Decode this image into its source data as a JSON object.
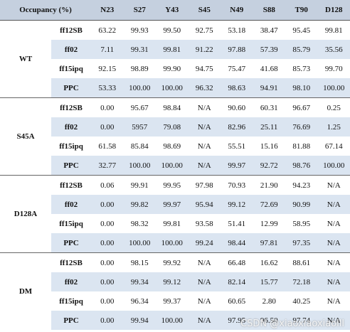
{
  "table": {
    "header": [
      "Occupancy (%)",
      "N23",
      "S27",
      "Y43",
      "S45",
      "N49",
      "S88",
      "T90",
      "D128"
    ],
    "groups": [
      {
        "name": "WT",
        "rows": [
          {
            "method": "ff12SB",
            "values": [
              "63.22",
              "99.93",
              "99.50",
              "92.75",
              "53.18",
              "38.47",
              "95.45",
              "99.81"
            ]
          },
          {
            "method": "ff02",
            "values": [
              "7.11",
              "99.31",
              "99.81",
              "91.22",
              "97.88",
              "57.39",
              "85.79",
              "35.56"
            ]
          },
          {
            "method": "ff15ipq",
            "values": [
              "92.15",
              "98.89",
              "99.90",
              "94.75",
              "75.47",
              "41.68",
              "85.73",
              "99.70"
            ]
          },
          {
            "method": "PPC",
            "values": [
              "53.33",
              "100.00",
              "100.00",
              "96.32",
              "98.63",
              "94.91",
              "98.10",
              "100.00"
            ]
          }
        ]
      },
      {
        "name": "S45A",
        "rows": [
          {
            "method": "ff12SB",
            "values": [
              "0.00",
              "95.67",
              "98.84",
              "N/A",
              "90.60",
              "60.31",
              "96.67",
              "0.25"
            ]
          },
          {
            "method": "ff02",
            "values": [
              "0.00",
              "5957",
              "79.08",
              "N/A",
              "82.96",
              "25.11",
              "76.69",
              "1.25"
            ]
          },
          {
            "method": "ff15ipq",
            "values": [
              "61.58",
              "85.84",
              "98.69",
              "N/A",
              "55.51",
              "15.16",
              "81.88",
              "67.14"
            ]
          },
          {
            "method": "PPC",
            "values": [
              "32.77",
              "100.00",
              "100.00",
              "N/A",
              "99.97",
              "92.72",
              "98.76",
              "100.00"
            ]
          }
        ]
      },
      {
        "name": "D128A",
        "rows": [
          {
            "method": "ff12SB",
            "values": [
              "0.06",
              "99.91",
              "99.95",
              "97.98",
              "70.93",
              "21.90",
              "94.23",
              "N/A"
            ]
          },
          {
            "method": "ff02",
            "values": [
              "0.00",
              "99.82",
              "99.97",
              "95.94",
              "99.12",
              "72.69",
              "90.99",
              "N/A"
            ]
          },
          {
            "method": "ff15ipq",
            "values": [
              "0.00",
              "98.32",
              "99.81",
              "93.58",
              "51.41",
              "12.99",
              "58.95",
              "N/A"
            ]
          },
          {
            "method": "PPC",
            "values": [
              "0.00",
              "100.00",
              "100.00",
              "99.24",
              "98.44",
              "97.81",
              "97.35",
              "N/A"
            ]
          }
        ]
      },
      {
        "name": "DM",
        "rows": [
          {
            "method": "ff12SB",
            "values": [
              "0.00",
              "98.15",
              "99.92",
              "N/A",
              "66.48",
              "16.62",
              "88.61",
              "N/A"
            ]
          },
          {
            "method": "ff02",
            "values": [
              "0.00",
              "99.34",
              "99.12",
              "N/A",
              "82.14",
              "15.77",
              "72.18",
              "N/A"
            ]
          },
          {
            "method": "ff15ipq",
            "values": [
              "0.00",
              "96.34",
              "99.37",
              "N/A",
              "60.65",
              "2.80",
              "40.25",
              "N/A"
            ]
          },
          {
            "method": "PPC",
            "values": [
              "0.00",
              "99.94",
              "100.00",
              "N/A",
              "97.95",
              "96.50",
              "97.74",
              "N/A"
            ]
          }
        ]
      }
    ]
  },
  "watermark": "CSDN @xiaoxiaoxiaolll"
}
